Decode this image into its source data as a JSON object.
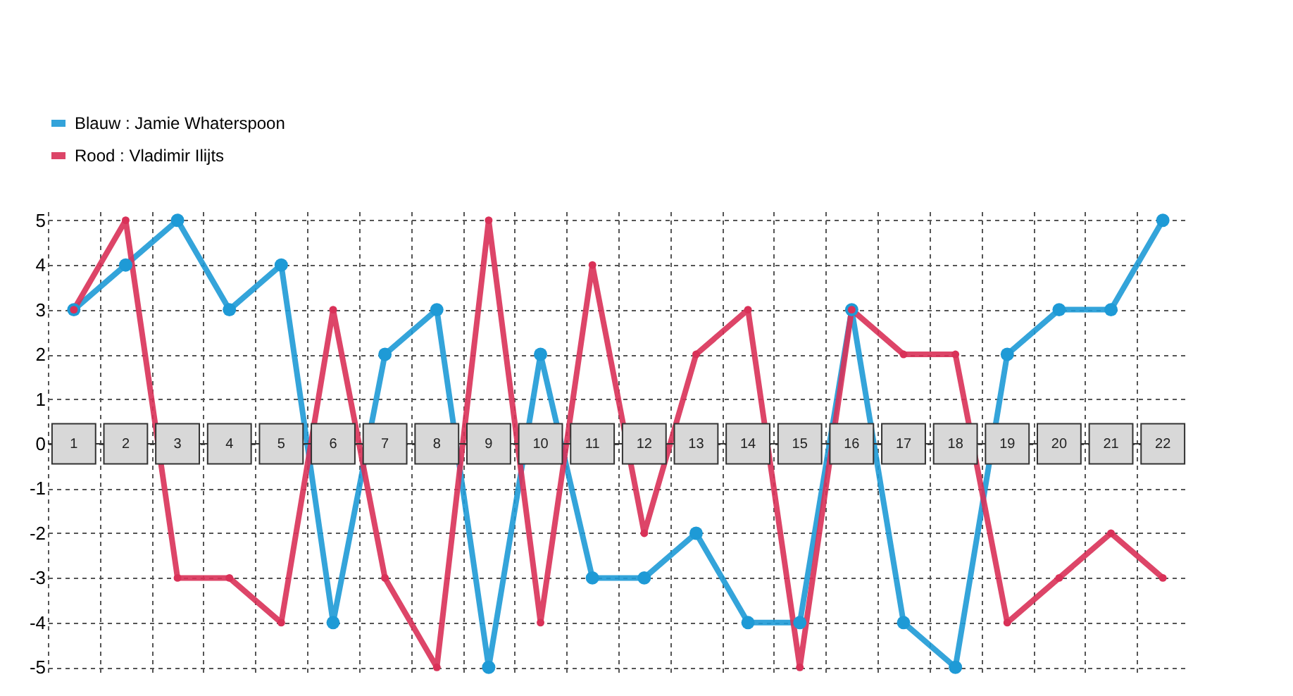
{
  "chart_data": {
    "type": "line",
    "categories": [
      "1",
      "2",
      "3",
      "4",
      "5",
      "6",
      "7",
      "8",
      "9",
      "10",
      "11",
      "12",
      "13",
      "14",
      "15",
      "16",
      "17",
      "18",
      "19",
      "20",
      "21",
      "22"
    ],
    "series": [
      {
        "name": "Blauw  :  Jamie Whaterspoon",
        "color": "#1e9ad6",
        "values": [
          3,
          4,
          5,
          3,
          4,
          -4,
          2,
          3,
          -5,
          2,
          -3,
          -3,
          -2,
          -4,
          -4,
          3,
          -4,
          -5,
          2,
          3,
          3,
          5
        ]
      },
      {
        "name": "Rood  :  Vladimir Ilijts",
        "color": "#d93158",
        "values": [
          3,
          5,
          -3,
          -3,
          -4,
          3,
          -3,
          -5,
          5,
          -4,
          4,
          -2,
          2,
          3,
          -5,
          3,
          2,
          2,
          -4,
          -3,
          -2,
          -3
        ]
      }
    ],
    "ylim": [
      -5.2,
      5.2
    ],
    "yticks": [
      -5,
      -4,
      -3,
      -2,
      -1,
      0,
      1,
      2,
      3,
      4,
      5
    ],
    "grid": true,
    "legend": "top left",
    "marker": "circle",
    "line_style": "solid"
  }
}
